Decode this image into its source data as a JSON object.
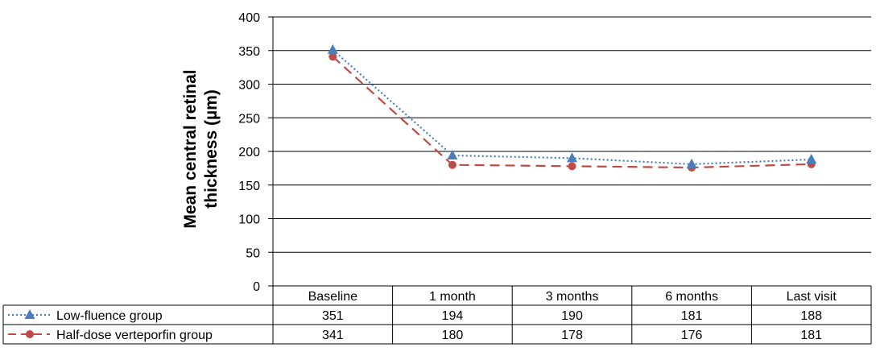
{
  "chart_data": {
    "type": "line",
    "title": "",
    "xlabel": "",
    "ylabel_lines": [
      "Mean central retinal",
      "thickness (µm)"
    ],
    "categories": [
      "Baseline",
      "1 month",
      "3 months",
      "6 months",
      "Last visit"
    ],
    "ylim": [
      0,
      400
    ],
    "yticks": [
      0,
      50,
      100,
      150,
      200,
      250,
      300,
      350,
      400
    ],
    "grid": true,
    "legend": "data-table",
    "series": [
      {
        "name": "Low-fluence group",
        "values": [
          351,
          194,
          190,
          181,
          188
        ],
        "color": "#4a7ebb",
        "line": "dotted",
        "marker": "triangle"
      },
      {
        "name": "Half-dose verteporfin group",
        "values": [
          341,
          180,
          178,
          176,
          181
        ],
        "color": "#be4b48",
        "line": "dashed",
        "marker": "circle"
      }
    ]
  }
}
